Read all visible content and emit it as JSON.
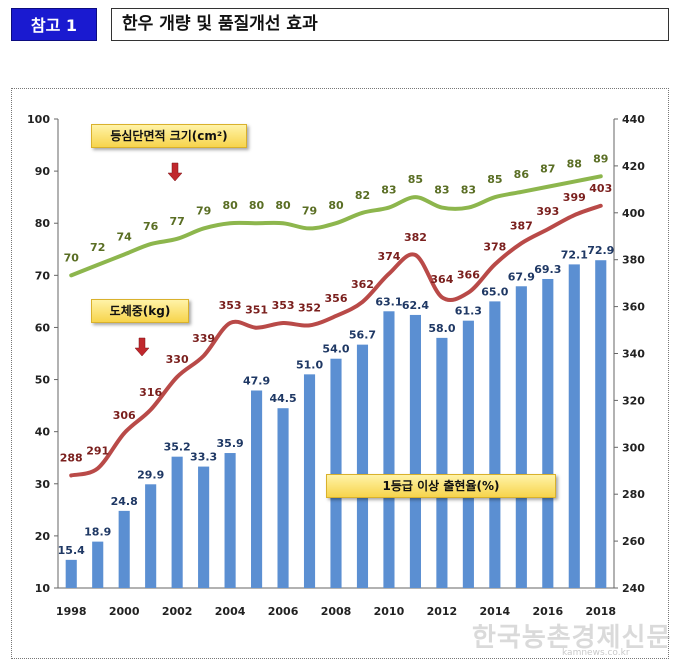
{
  "header": {
    "tag": "참고 1",
    "title": "한우 개량 및 품질개선 효과"
  },
  "callouts": {
    "area": "등심단면적 크기(cm²)",
    "weight": "도체중(kg)",
    "grade": "1등급 이상 출현율(%)"
  },
  "watermark": {
    "text": "한국농촌경제신문",
    "sub": "kamnews.co.kr"
  },
  "colors": {
    "bars": "#5b8fd2",
    "area_line": "#8db64d",
    "weight_line": "#b94a48",
    "bar_label": "#1f3864",
    "area_label": "#5a6e24",
    "weight_label": "#7a1f1d",
    "arrow": "#c0282d"
  },
  "chart_data": {
    "type": "bar",
    "years": [
      1998,
      1999,
      2000,
      2001,
      2002,
      2003,
      2004,
      2005,
      2006,
      2007,
      2008,
      2009,
      2010,
      2011,
      2012,
      2013,
      2014,
      2015,
      2016,
      2017,
      2018
    ],
    "x_tick_labels": [
      "1998",
      "2000",
      "2002",
      "2004",
      "2006",
      "2008",
      "2010",
      "2012",
      "2014",
      "2016",
      "2018"
    ],
    "series": [
      {
        "name": "1등급 이상 출현율(%)",
        "kind": "bar",
        "axis": "left",
        "values": [
          15.4,
          18.9,
          24.8,
          29.9,
          35.2,
          33.3,
          35.9,
          47.9,
          44.5,
          51.0,
          54.0,
          56.7,
          63.1,
          62.4,
          58.0,
          61.3,
          65.0,
          67.9,
          69.3,
          72.1,
          72.9
        ],
        "labels": [
          "15.4",
          "18.9",
          "24.8",
          "29.9",
          "35.2",
          "33.3",
          "35.9",
          "47.9",
          "44.5",
          "51.0",
          "54.0",
          "56.7",
          "63.1",
          "62.4",
          "58.0",
          "61.3",
          "65.0",
          "67.9",
          "69.3",
          "72.1",
          "72.9"
        ]
      },
      {
        "name": "등심단면적 크기(cm²)",
        "kind": "line",
        "axis": "left",
        "values": [
          70,
          72,
          74,
          76,
          77,
          79,
          80,
          80,
          80,
          79,
          80,
          82,
          83,
          85,
          83,
          83,
          85,
          86,
          87,
          88,
          89
        ],
        "labels": [
          "70",
          "72",
          "74",
          "76",
          "77",
          "79",
          "80",
          "80",
          "80",
          "79",
          "80",
          "82",
          "83",
          "85",
          "83",
          "83",
          "85",
          "86",
          "87",
          "88",
          "89"
        ]
      },
      {
        "name": "도체중(kg)",
        "kind": "line",
        "axis": "right",
        "values": [
          288,
          291,
          306,
          316,
          330,
          339,
          353,
          351,
          353,
          352,
          356,
          362,
          374,
          382,
          364,
          366,
          378,
          387,
          393,
          399,
          403
        ],
        "labels": [
          "288",
          "291",
          "306",
          "316",
          "330",
          "339",
          "353",
          "351",
          "353",
          "352",
          "356",
          "362",
          "374",
          "382",
          "364",
          "366",
          "378",
          "387",
          "393",
          "399",
          "403"
        ]
      }
    ],
    "ylim_left": [
      10,
      100
    ],
    "yticks_left": [
      "10",
      "20",
      "30",
      "40",
      "50",
      "60",
      "70",
      "80",
      "90",
      "100"
    ],
    "ylim_right": [
      240,
      440
    ],
    "yticks_right": [
      "240",
      "260",
      "280",
      "300",
      "320",
      "340",
      "360",
      "380",
      "400",
      "420",
      "440"
    ],
    "grid": false,
    "legend": "callouts"
  }
}
